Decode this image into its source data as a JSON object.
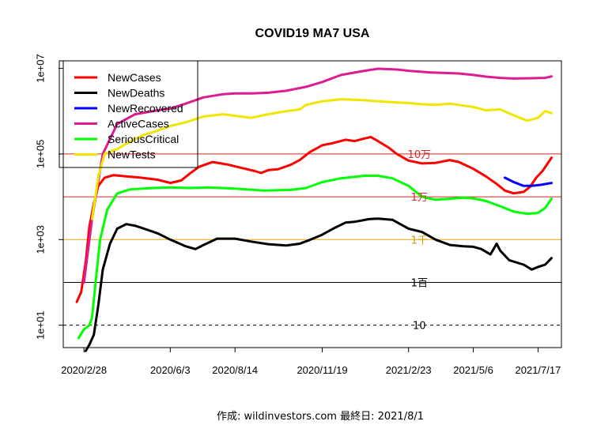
{
  "chart_data": {
    "type": "line",
    "title": "COVID19 MA7 USA",
    "caption": "作成: wildinvestors.com 最終日: 2021/8/1",
    "y_scale": "log10",
    "ylim": [
      3,
      15000000
    ],
    "xlim": [
      "2020-02-05",
      "2021-08-12"
    ],
    "y_ticks": [
      {
        "value": 10,
        "label": "1e+01"
      },
      {
        "value": 1000,
        "label": "1e+03"
      },
      {
        "value": 100000,
        "label": "1e+05"
      },
      {
        "value": 10000000,
        "label": "1e+07"
      }
    ],
    "x_ticks": [
      {
        "value": "2020-02-28",
        "label": "2020/2/28"
      },
      {
        "value": "2020-06-03",
        "label": "2020/6/3"
      },
      {
        "value": "2020-08-14",
        "label": "2020/8/14"
      },
      {
        "value": "2020-11-19",
        "label": "2020/11/19"
      },
      {
        "value": "2021-02-23",
        "label": "2021/2/23"
      },
      {
        "value": "2021-05-06",
        "label": "2021/5/6"
      },
      {
        "value": "2021-07-17",
        "label": "2021/7/17"
      }
    ],
    "reference_lines": [
      {
        "value": 100000,
        "label": "10万",
        "color": "#d62728",
        "style": "solid"
      },
      {
        "value": 10000,
        "label": "1万",
        "color": "#d62728",
        "style": "solid"
      },
      {
        "value": 1000,
        "label": "1千",
        "color": "#e8a317",
        "style": "solid"
      },
      {
        "value": 100,
        "label": "1百",
        "color": "#000000",
        "style": "solid"
      },
      {
        "value": 10,
        "label": "10",
        "color": "#000000",
        "style": "dashed"
      }
    ],
    "legend_position": "top-left",
    "series": [
      {
        "name": "NewCases",
        "color": "#ff0000",
        "points": [
          [
            "2020-02-20",
            35
          ],
          [
            "2020-02-25",
            60
          ],
          [
            "2020-03-01",
            300
          ],
          [
            "2020-03-05",
            2000
          ],
          [
            "2020-03-10",
            7000
          ],
          [
            "2020-03-15",
            18000
          ],
          [
            "2020-03-22",
            28000
          ],
          [
            "2020-04-01",
            32000
          ],
          [
            "2020-04-15",
            30000
          ],
          [
            "2020-05-01",
            28000
          ],
          [
            "2020-05-20",
            25000
          ],
          [
            "2020-06-03",
            21000
          ],
          [
            "2020-06-15",
            24000
          ],
          [
            "2020-06-25",
            35000
          ],
          [
            "2020-07-05",
            50000
          ],
          [
            "2020-07-20",
            65000
          ],
          [
            "2020-08-05",
            57000
          ],
          [
            "2020-08-20",
            48000
          ],
          [
            "2020-09-05",
            40000
          ],
          [
            "2020-09-12",
            36000
          ],
          [
            "2020-09-20",
            42000
          ],
          [
            "2020-10-01",
            44000
          ],
          [
            "2020-10-15",
            56000
          ],
          [
            "2020-10-25",
            72000
          ],
          [
            "2020-11-05",
            110000
          ],
          [
            "2020-11-19",
            160000
          ],
          [
            "2020-12-01",
            180000
          ],
          [
            "2020-12-15",
            215000
          ],
          [
            "2020-12-25",
            200000
          ],
          [
            "2021-01-05",
            230000
          ],
          [
            "2021-01-12",
            250000
          ],
          [
            "2021-01-20",
            200000
          ],
          [
            "2021-02-01",
            140000
          ],
          [
            "2021-02-10",
            100000
          ],
          [
            "2021-02-23",
            70000
          ],
          [
            "2021-03-10",
            60000
          ],
          [
            "2021-03-25",
            62000
          ],
          [
            "2021-04-10",
            72000
          ],
          [
            "2021-04-20",
            65000
          ],
          [
            "2021-05-06",
            45000
          ],
          [
            "2021-05-20",
            30000
          ],
          [
            "2021-06-01",
            20000
          ],
          [
            "2021-06-10",
            14000
          ],
          [
            "2021-06-20",
            12000
          ],
          [
            "2021-07-01",
            13000
          ],
          [
            "2021-07-08",
            17000
          ],
          [
            "2021-07-15",
            28000
          ],
          [
            "2021-07-22",
            40000
          ],
          [
            "2021-08-01",
            82000
          ]
        ]
      },
      {
        "name": "NewDeaths",
        "color": "#000000",
        "points": [
          [
            "2020-03-01",
            2.5
          ],
          [
            "2020-03-05",
            3.5
          ],
          [
            "2020-03-10",
            6
          ],
          [
            "2020-03-15",
            30
          ],
          [
            "2020-03-20",
            200
          ],
          [
            "2020-03-28",
            800
          ],
          [
            "2020-04-05",
            1800
          ],
          [
            "2020-04-15",
            2300
          ],
          [
            "2020-04-25",
            2100
          ],
          [
            "2020-05-05",
            1800
          ],
          [
            "2020-05-20",
            1400
          ],
          [
            "2020-06-03",
            1000
          ],
          [
            "2020-06-20",
            700
          ],
          [
            "2020-07-01",
            600
          ],
          [
            "2020-07-10",
            750
          ],
          [
            "2020-07-25",
            1050
          ],
          [
            "2020-08-14",
            1050
          ],
          [
            "2020-09-01",
            900
          ],
          [
            "2020-09-20",
            780
          ],
          [
            "2020-10-10",
            730
          ],
          [
            "2020-10-25",
            800
          ],
          [
            "2020-11-05",
            980
          ],
          [
            "2020-11-19",
            1300
          ],
          [
            "2020-12-01",
            1800
          ],
          [
            "2020-12-15",
            2500
          ],
          [
            "2020-12-25",
            2600
          ],
          [
            "2021-01-10",
            3000
          ],
          [
            "2021-01-20",
            3100
          ],
          [
            "2021-02-05",
            2900
          ],
          [
            "2021-02-23",
            1800
          ],
          [
            "2021-03-10",
            1500
          ],
          [
            "2021-03-25",
            1000
          ],
          [
            "2021-04-10",
            750
          ],
          [
            "2021-04-25",
            700
          ],
          [
            "2021-05-06",
            680
          ],
          [
            "2021-05-15",
            600
          ],
          [
            "2021-05-25",
            450
          ],
          [
            "2021-06-01",
            800
          ],
          [
            "2021-06-05",
            550
          ],
          [
            "2021-06-15",
            330
          ],
          [
            "2021-07-01",
            260
          ],
          [
            "2021-07-10",
            200
          ],
          [
            "2021-07-17",
            230
          ],
          [
            "2021-07-25",
            260
          ],
          [
            "2021-08-01",
            370
          ]
        ]
      },
      {
        "name": "NewRecovered",
        "color": "#0000ff",
        "points": [
          [
            "2021-06-10",
            28000
          ],
          [
            "2021-06-20",
            22000
          ],
          [
            "2021-07-01",
            18000
          ],
          [
            "2021-07-10",
            18000
          ],
          [
            "2021-07-20",
            19000
          ],
          [
            "2021-08-01",
            21000
          ]
        ]
      },
      {
        "name": "ActiveCases",
        "color": "#dd1c91",
        "points": [
          [
            "2020-02-28",
            100
          ],
          [
            "2020-03-08",
            3000
          ],
          [
            "2020-03-20",
            100000
          ],
          [
            "2020-04-05",
            500000
          ],
          [
            "2020-04-25",
            850000
          ],
          [
            "2020-05-20",
            1050000
          ],
          [
            "2020-06-03",
            1150000
          ],
          [
            "2020-06-20",
            1500000
          ],
          [
            "2020-07-10",
            2100000
          ],
          [
            "2020-08-01",
            2500000
          ],
          [
            "2020-08-14",
            2600000
          ],
          [
            "2020-09-01",
            2600000
          ],
          [
            "2020-09-20",
            2700000
          ],
          [
            "2020-10-10",
            3000000
          ],
          [
            "2020-11-01",
            3700000
          ],
          [
            "2020-11-19",
            4800000
          ],
          [
            "2020-12-10",
            7000000
          ],
          [
            "2021-01-05",
            8800000
          ],
          [
            "2021-01-20",
            9800000
          ],
          [
            "2021-02-10",
            9400000
          ],
          [
            "2021-02-23",
            8800000
          ],
          [
            "2021-03-20",
            8000000
          ],
          [
            "2021-04-20",
            7600000
          ],
          [
            "2021-05-06",
            7000000
          ],
          [
            "2021-05-20",
            6400000
          ],
          [
            "2021-06-05",
            6000000
          ],
          [
            "2021-06-20",
            5800000
          ],
          [
            "2021-07-10",
            5900000
          ],
          [
            "2021-07-25",
            6000000
          ],
          [
            "2021-08-01",
            6500000
          ]
        ]
      },
      {
        "name": "SeriousCritical",
        "color": "#00ff00",
        "points": [
          [
            "2020-02-22",
            5
          ],
          [
            "2020-02-28",
            8
          ],
          [
            "2020-03-05",
            10
          ],
          [
            "2020-03-08",
            15
          ],
          [
            "2020-03-12",
            100
          ],
          [
            "2020-03-17",
            1000
          ],
          [
            "2020-03-25",
            5000
          ],
          [
            "2020-04-05",
            12000
          ],
          [
            "2020-04-20",
            15000
          ],
          [
            "2020-05-15",
            16000
          ],
          [
            "2020-06-03",
            16500
          ],
          [
            "2020-06-25",
            16000
          ],
          [
            "2020-07-15",
            16500
          ],
          [
            "2020-08-14",
            15500
          ],
          [
            "2020-09-15",
            14000
          ],
          [
            "2020-10-15",
            14500
          ],
          [
            "2020-11-01",
            16000
          ],
          [
            "2020-11-19",
            22000
          ],
          [
            "2020-12-10",
            27000
          ],
          [
            "2021-01-05",
            31000
          ],
          [
            "2021-01-20",
            31000
          ],
          [
            "2021-02-05",
            27000
          ],
          [
            "2021-02-23",
            18000
          ],
          [
            "2021-03-10",
            10000
          ],
          [
            "2021-03-25",
            8500
          ],
          [
            "2021-04-10",
            9000
          ],
          [
            "2021-04-25",
            9500
          ],
          [
            "2021-05-06",
            9200
          ],
          [
            "2021-05-20",
            8000
          ],
          [
            "2021-06-05",
            6000
          ],
          [
            "2021-06-20",
            4500
          ],
          [
            "2021-07-05",
            4000
          ],
          [
            "2021-07-17",
            4200
          ],
          [
            "2021-07-25",
            5500
          ],
          [
            "2021-08-01",
            9000
          ]
        ]
      },
      {
        "name": "NewTests",
        "color": "#f0e600",
        "points": [
          [
            "2020-03-08",
            3000
          ],
          [
            "2020-03-15",
            30000
          ],
          [
            "2020-03-22",
            100000
          ],
          [
            "2020-04-05",
            130000
          ],
          [
            "2020-04-20",
            200000
          ],
          [
            "2020-05-05",
            280000
          ],
          [
            "2020-05-20",
            350000
          ],
          [
            "2020-06-03",
            450000
          ],
          [
            "2020-06-20",
            550000
          ],
          [
            "2020-07-10",
            750000
          ],
          [
            "2020-08-01",
            850000
          ],
          [
            "2020-08-14",
            780000
          ],
          [
            "2020-09-01",
            700000
          ],
          [
            "2020-09-20",
            850000
          ],
          [
            "2020-10-10",
            1000000
          ],
          [
            "2020-10-25",
            1100000
          ],
          [
            "2020-11-01",
            1400000
          ],
          [
            "2020-11-19",
            1700000
          ],
          [
            "2020-12-10",
            1900000
          ],
          [
            "2021-01-05",
            1800000
          ],
          [
            "2021-01-20",
            1700000
          ],
          [
            "2021-02-10",
            1600000
          ],
          [
            "2021-02-23",
            1550000
          ],
          [
            "2021-03-10",
            1450000
          ],
          [
            "2021-03-25",
            1400000
          ],
          [
            "2021-04-10",
            1500000
          ],
          [
            "2021-04-25",
            1350000
          ],
          [
            "2021-05-06",
            1250000
          ],
          [
            "2021-05-20",
            1050000
          ],
          [
            "2021-06-05",
            1100000
          ],
          [
            "2021-06-20",
            800000
          ],
          [
            "2021-07-05",
            600000
          ],
          [
            "2021-07-17",
            700000
          ],
          [
            "2021-07-25",
            1000000
          ],
          [
            "2021-08-01",
            900000
          ]
        ]
      }
    ]
  }
}
